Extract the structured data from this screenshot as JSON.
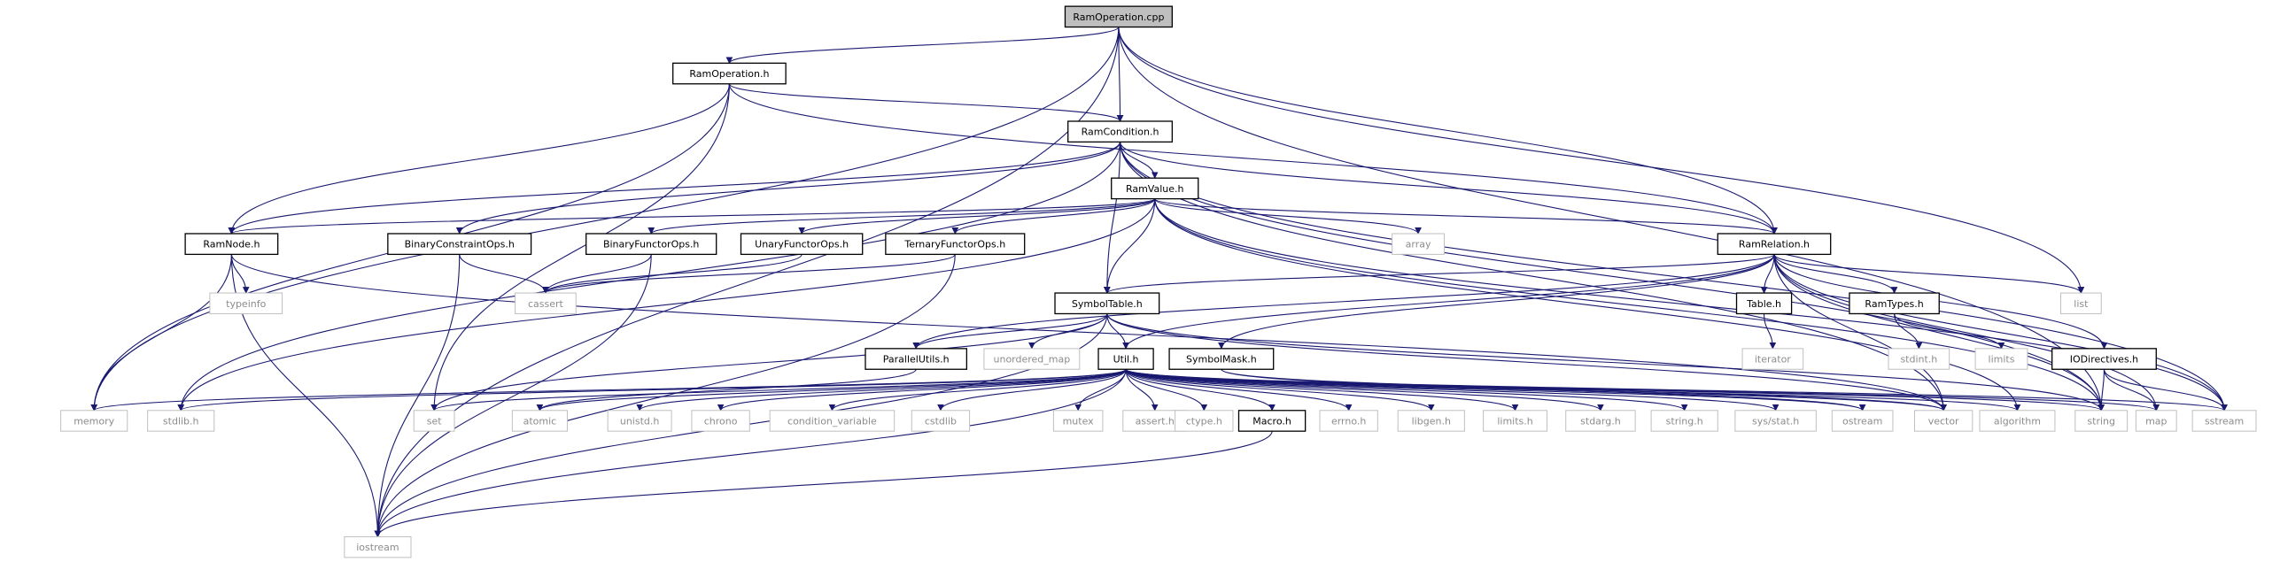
{
  "graph": {
    "root": "RamOperation.cpp",
    "colors": {
      "edge": "#191970",
      "root_fill": "#bfbfbf",
      "node_border": "#000000",
      "system_border": "#bfbfbf",
      "system_text": "#8c8c8c"
    },
    "nodes": [
      {
        "id": "ram_operation_cpp",
        "label": "RamOperation.cpp",
        "kind": "root"
      },
      {
        "id": "ram_operation_h",
        "label": "RamOperation.h",
        "kind": "project"
      },
      {
        "id": "ram_condition_h",
        "label": "RamCondition.h",
        "kind": "project"
      },
      {
        "id": "ram_value_h",
        "label": "RamValue.h",
        "kind": "project"
      },
      {
        "id": "ram_node_h",
        "label": "RamNode.h",
        "kind": "project"
      },
      {
        "id": "binary_constraint_ops_h",
        "label": "BinaryConstraintOps.h",
        "kind": "project"
      },
      {
        "id": "binary_functor_ops_h",
        "label": "BinaryFunctorOps.h",
        "kind": "project"
      },
      {
        "id": "unary_functor_ops_h",
        "label": "UnaryFunctorOps.h",
        "kind": "project"
      },
      {
        "id": "ternary_functor_ops_h",
        "label": "TernaryFunctorOps.h",
        "kind": "project"
      },
      {
        "id": "ram_relation_h",
        "label": "RamRelation.h",
        "kind": "project"
      },
      {
        "id": "symbol_table_h",
        "label": "SymbolTable.h",
        "kind": "project"
      },
      {
        "id": "table_h",
        "label": "Table.h",
        "kind": "project"
      },
      {
        "id": "ram_types_h",
        "label": "RamTypes.h",
        "kind": "project"
      },
      {
        "id": "parallel_utils_h",
        "label": "ParallelUtils.h",
        "kind": "project"
      },
      {
        "id": "util_h",
        "label": "Util.h",
        "kind": "project"
      },
      {
        "id": "symbol_mask_h",
        "label": "SymbolMask.h",
        "kind": "project"
      },
      {
        "id": "io_directives_h",
        "label": "IODirectives.h",
        "kind": "project"
      },
      {
        "id": "macro_h",
        "label": "Macro.h",
        "kind": "project"
      },
      {
        "id": "typeinfo",
        "label": "typeinfo",
        "kind": "system"
      },
      {
        "id": "cassert",
        "label": "cassert",
        "kind": "system"
      },
      {
        "id": "array",
        "label": "array",
        "kind": "system"
      },
      {
        "id": "list",
        "label": "list",
        "kind": "system"
      },
      {
        "id": "iterator",
        "label": "iterator",
        "kind": "system"
      },
      {
        "id": "stdint_h",
        "label": "stdint.h",
        "kind": "system"
      },
      {
        "id": "limits",
        "label": "limits",
        "kind": "system"
      },
      {
        "id": "unordered_map",
        "label": "unordered_map",
        "kind": "system"
      },
      {
        "id": "memory",
        "label": "memory",
        "kind": "system"
      },
      {
        "id": "stdlib_h",
        "label": "stdlib.h",
        "kind": "system"
      },
      {
        "id": "set",
        "label": "set",
        "kind": "system"
      },
      {
        "id": "atomic",
        "label": "atomic",
        "kind": "system"
      },
      {
        "id": "unistd_h",
        "label": "unistd.h",
        "kind": "system"
      },
      {
        "id": "chrono",
        "label": "chrono",
        "kind": "system"
      },
      {
        "id": "condition_variable",
        "label": "condition_variable",
        "kind": "system"
      },
      {
        "id": "cstdlib",
        "label": "cstdlib",
        "kind": "system"
      },
      {
        "id": "mutex",
        "label": "mutex",
        "kind": "system"
      },
      {
        "id": "assert_h",
        "label": "assert.h",
        "kind": "system"
      },
      {
        "id": "ctype_h",
        "label": "ctype.h",
        "kind": "system"
      },
      {
        "id": "errno_h",
        "label": "errno.h",
        "kind": "system"
      },
      {
        "id": "libgen_h",
        "label": "libgen.h",
        "kind": "system"
      },
      {
        "id": "limits_h",
        "label": "limits.h",
        "kind": "system"
      },
      {
        "id": "stdarg_h",
        "label": "stdarg.h",
        "kind": "system"
      },
      {
        "id": "string_h",
        "label": "string.h",
        "kind": "system"
      },
      {
        "id": "sys_stat_h",
        "label": "sys/stat.h",
        "kind": "system"
      },
      {
        "id": "ostream",
        "label": "ostream",
        "kind": "system"
      },
      {
        "id": "vector",
        "label": "vector",
        "kind": "system"
      },
      {
        "id": "algorithm",
        "label": "algorithm",
        "kind": "system"
      },
      {
        "id": "string",
        "label": "string",
        "kind": "system"
      },
      {
        "id": "map",
        "label": "map",
        "kind": "system"
      },
      {
        "id": "sstream",
        "label": "sstream",
        "kind": "system"
      },
      {
        "id": "iostream",
        "label": "iostream",
        "kind": "system"
      }
    ],
    "edges": [
      [
        "ram_operation_cpp",
        "ram_operation_h"
      ],
      [
        "ram_operation_cpp",
        "ram_condition_h"
      ],
      [
        "ram_operation_cpp",
        "ram_relation_h"
      ],
      [
        "ram_operation_cpp",
        "list"
      ],
      [
        "ram_operation_cpp",
        "string"
      ],
      [
        "ram_operation_cpp",
        "memory"
      ],
      [
        "ram_operation_cpp",
        "iostream"
      ],
      [
        "ram_operation_h",
        "ram_condition_h"
      ],
      [
        "ram_operation_h",
        "ram_node_h"
      ],
      [
        "ram_operation_h",
        "ram_relation_h"
      ],
      [
        "ram_operation_h",
        "memory"
      ],
      [
        "ram_operation_h",
        "set"
      ],
      [
        "ram_condition_h",
        "ram_value_h"
      ],
      [
        "ram_condition_h",
        "ram_node_h"
      ],
      [
        "ram_condition_h",
        "binary_constraint_ops_h"
      ],
      [
        "ram_condition_h",
        "ram_relation_h"
      ],
      [
        "ram_condition_h",
        "symbol_table_h"
      ],
      [
        "ram_condition_h",
        "stdlib_h"
      ],
      [
        "ram_condition_h",
        "vector"
      ],
      [
        "ram_condition_h",
        "string"
      ],
      [
        "ram_condition_h",
        "sstream"
      ],
      [
        "ram_value_h",
        "ram_node_h"
      ],
      [
        "ram_value_h",
        "binary_functor_ops_h"
      ],
      [
        "ram_value_h",
        "unary_functor_ops_h"
      ],
      [
        "ram_value_h",
        "ternary_functor_ops_h"
      ],
      [
        "ram_value_h",
        "ram_relation_h"
      ],
      [
        "ram_value_h",
        "symbol_table_h"
      ],
      [
        "ram_value_h",
        "array"
      ],
      [
        "ram_value_h",
        "algorithm"
      ],
      [
        "ram_value_h",
        "string"
      ],
      [
        "ram_value_h",
        "sstream"
      ],
      [
        "ram_value_h",
        "stdlib_h"
      ],
      [
        "ram_node_h",
        "typeinfo"
      ],
      [
        "ram_node_h",
        "memory"
      ],
      [
        "ram_node_h",
        "iostream"
      ],
      [
        "ram_node_h",
        "vector"
      ],
      [
        "binary_constraint_ops_h",
        "cassert"
      ],
      [
        "binary_constraint_ops_h",
        "iostream"
      ],
      [
        "binary_functor_ops_h",
        "cassert"
      ],
      [
        "binary_functor_ops_h",
        "iostream"
      ],
      [
        "unary_functor_ops_h",
        "cassert"
      ],
      [
        "ternary_functor_ops_h",
        "cassert"
      ],
      [
        "ternary_functor_ops_h",
        "iostream"
      ],
      [
        "ram_relation_h",
        "symbol_table_h"
      ],
      [
        "ram_relation_h",
        "table_h"
      ],
      [
        "ram_relation_h",
        "ram_types_h"
      ],
      [
        "ram_relation_h",
        "parallel_utils_h"
      ],
      [
        "ram_relation_h",
        "util_h"
      ],
      [
        "ram_relation_h",
        "symbol_mask_h"
      ],
      [
        "ram_relation_h",
        "io_directives_h"
      ],
      [
        "ram_relation_h",
        "list"
      ],
      [
        "ram_relation_h",
        "string"
      ],
      [
        "ram_relation_h",
        "map"
      ],
      [
        "ram_relation_h",
        "sstream"
      ],
      [
        "ram_relation_h",
        "vector"
      ],
      [
        "symbol_table_h",
        "parallel_utils_h"
      ],
      [
        "symbol_table_h",
        "util_h"
      ],
      [
        "symbol_table_h",
        "unordered_map"
      ],
      [
        "symbol_table_h",
        "set"
      ],
      [
        "symbol_table_h",
        "vector"
      ],
      [
        "symbol_table_h",
        "iostream"
      ],
      [
        "symbol_table_h",
        "string"
      ],
      [
        "table_h",
        "iterator"
      ],
      [
        "ram_types_h",
        "stdint_h"
      ],
      [
        "ram_types_h",
        "limits"
      ],
      [
        "parallel_utils_h",
        "atomic"
      ],
      [
        "util_h",
        "macro_h"
      ],
      [
        "util_h",
        "memory"
      ],
      [
        "util_h",
        "stdlib_h"
      ],
      [
        "util_h",
        "set"
      ],
      [
        "util_h",
        "atomic"
      ],
      [
        "util_h",
        "unistd_h"
      ],
      [
        "util_h",
        "chrono"
      ],
      [
        "util_h",
        "condition_variable"
      ],
      [
        "util_h",
        "cstdlib"
      ],
      [
        "util_h",
        "mutex"
      ],
      [
        "util_h",
        "assert_h"
      ],
      [
        "util_h",
        "ctype_h"
      ],
      [
        "util_h",
        "errno_h"
      ],
      [
        "util_h",
        "libgen_h"
      ],
      [
        "util_h",
        "limits_h"
      ],
      [
        "util_h",
        "stdarg_h"
      ],
      [
        "util_h",
        "string_h"
      ],
      [
        "util_h",
        "sys_stat_h"
      ],
      [
        "util_h",
        "ostream"
      ],
      [
        "util_h",
        "vector"
      ],
      [
        "util_h",
        "algorithm"
      ],
      [
        "util_h",
        "string"
      ],
      [
        "util_h",
        "map"
      ],
      [
        "util_h",
        "sstream"
      ],
      [
        "util_h",
        "iostream"
      ],
      [
        "symbol_mask_h",
        "ostream"
      ],
      [
        "symbol_mask_h",
        "vector"
      ],
      [
        "io_directives_h",
        "map"
      ],
      [
        "io_directives_h",
        "sstream"
      ],
      [
        "io_directives_h",
        "string"
      ],
      [
        "macro_h",
        "iostream"
      ]
    ]
  }
}
